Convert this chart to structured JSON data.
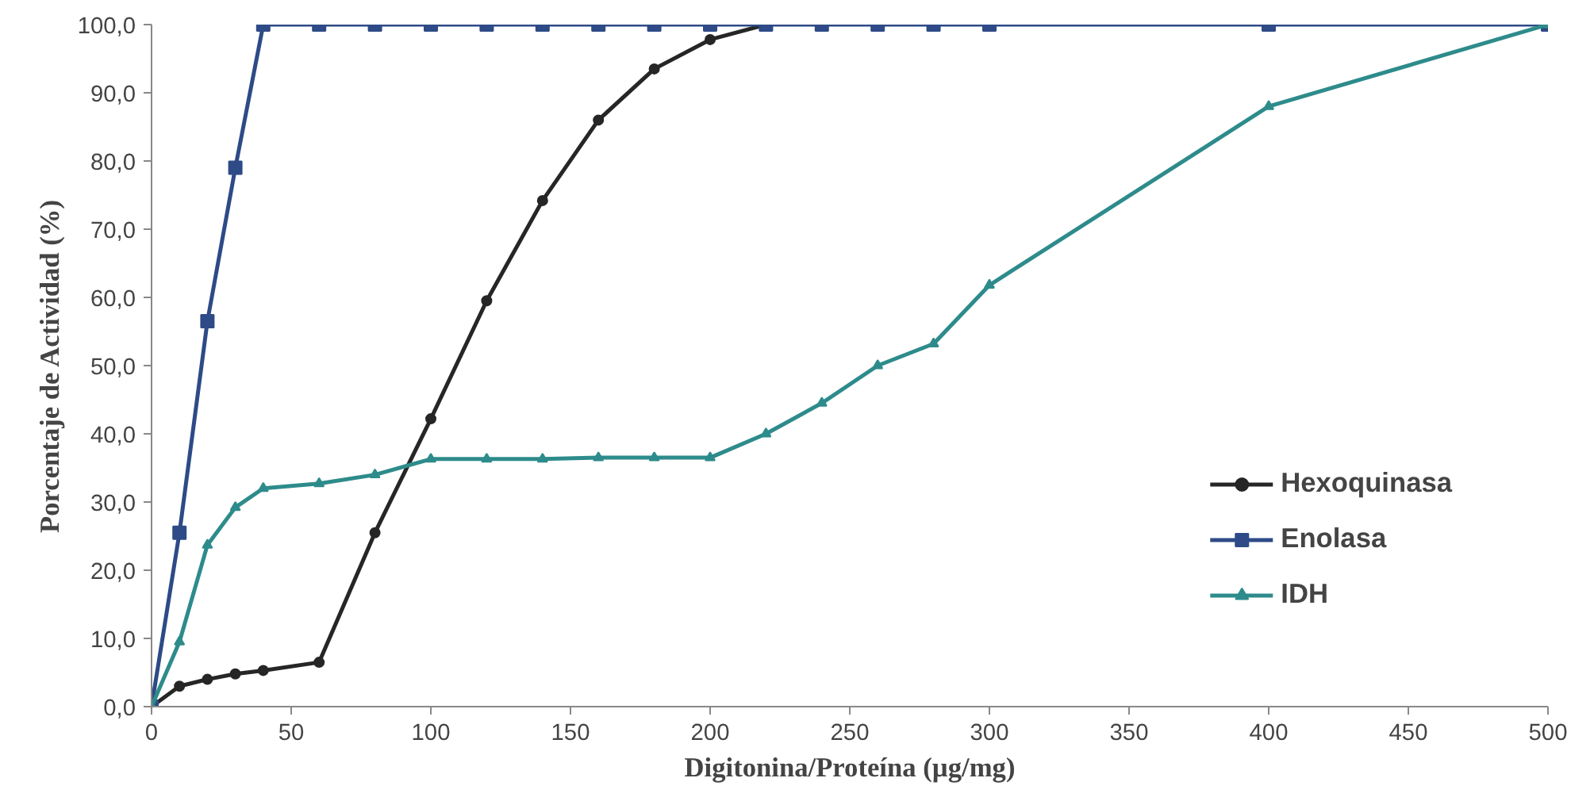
{
  "chart_data": {
    "type": "line",
    "xlabel": "Digitonina/Proteína (µg/mg)",
    "ylabel": "Porcentaje de Actividad (%)",
    "xlim": [
      0,
      500
    ],
    "xticks": [
      0,
      50,
      100,
      150,
      200,
      250,
      300,
      350,
      400,
      450,
      500
    ],
    "ylim": [
      0,
      100
    ],
    "yticks": [
      {
        "value": 0,
        "label": "0,0"
      },
      {
        "value": 10,
        "label": "10,0"
      },
      {
        "value": 20,
        "label": "20,0"
      },
      {
        "value": 30,
        "label": "30,0"
      },
      {
        "value": 40,
        "label": "40,0"
      },
      {
        "value": 50,
        "label": "50,0"
      },
      {
        "value": 60,
        "label": "60,0"
      },
      {
        "value": 70,
        "label": "70,0"
      },
      {
        "value": 80,
        "label": "80,0"
      },
      {
        "value": 90,
        "label": "90,0"
      },
      {
        "value": 100,
        "label": "100,0"
      }
    ],
    "grid": false,
    "legend": "bottom right",
    "line_style": "solid",
    "series": [
      {
        "name": "Hexoquinasa",
        "color": "#262626",
        "marker": "circle",
        "x": [
          0,
          10,
          20,
          30,
          40,
          60,
          80,
          100,
          120,
          140,
          160,
          180,
          200,
          220
        ],
        "values": [
          0,
          3.0,
          4.0,
          4.8,
          5.3,
          6.5,
          25.5,
          42.2,
          59.5,
          74.2,
          86.0,
          93.5,
          97.8,
          100
        ]
      },
      {
        "name": "Enolasa",
        "color": "#2e4a87",
        "marker": "square",
        "x": [
          0,
          10,
          20,
          30,
          40,
          60,
          80,
          100,
          120,
          140,
          160,
          180,
          200,
          220,
          240,
          260,
          280,
          300,
          400,
          500
        ],
        "values": [
          0,
          25.5,
          56.5,
          79.0,
          100,
          100,
          100,
          100,
          100,
          100,
          100,
          100,
          100,
          100,
          100,
          100,
          100,
          100,
          100,
          100
        ]
      },
      {
        "name": "IDH",
        "color": "#2e8b8b",
        "marker": "triangle",
        "x": [
          0,
          10,
          20,
          30,
          40,
          60,
          80,
          100,
          120,
          140,
          160,
          180,
          200,
          220,
          240,
          260,
          280,
          300,
          400,
          500
        ],
        "values": [
          0,
          9.5,
          23.7,
          29.2,
          32.0,
          32.7,
          34.0,
          36.3,
          36.3,
          36.3,
          36.5,
          36.5,
          36.5,
          40.0,
          44.5,
          50.0,
          53.2,
          61.8,
          88.0,
          100
        ]
      }
    ]
  }
}
